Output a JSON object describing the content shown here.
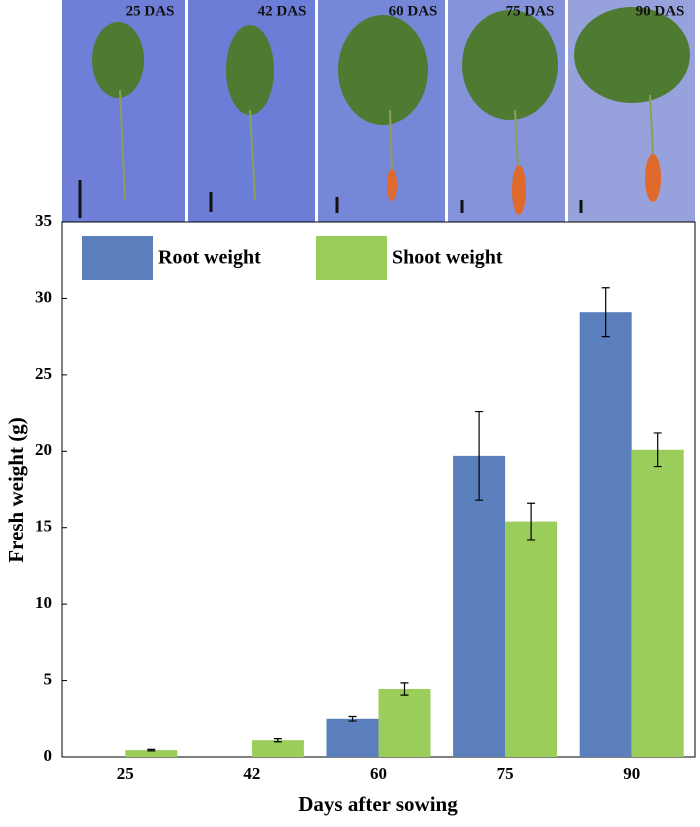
{
  "chart_data": {
    "type": "bar",
    "photo_labels": [
      "25 DAS",
      "42 DAS",
      "60 DAS",
      "75 DAS",
      "90 DAS"
    ],
    "x_label": "Days after sowing",
    "y_label": "Fresh weight (g)",
    "categories": [
      "25",
      "42",
      "60",
      "75",
      "90"
    ],
    "series": [
      {
        "name": "Root weight",
        "color": "#5b7fbd",
        "values": [
          null,
          null,
          2.5,
          19.7,
          29.1
        ],
        "errors": [
          null,
          null,
          0.15,
          2.9,
          1.6
        ]
      },
      {
        "name": "Shoot weight",
        "color": "#9bcd5b",
        "values": [
          0.45,
          1.1,
          4.45,
          15.4,
          20.1
        ],
        "errors": [
          0.05,
          0.1,
          0.4,
          1.2,
          1.1
        ]
      }
    ],
    "ylim": [
      0,
      35
    ],
    "yticks": [
      0,
      5,
      10,
      15,
      20,
      25,
      30,
      35
    ]
  }
}
